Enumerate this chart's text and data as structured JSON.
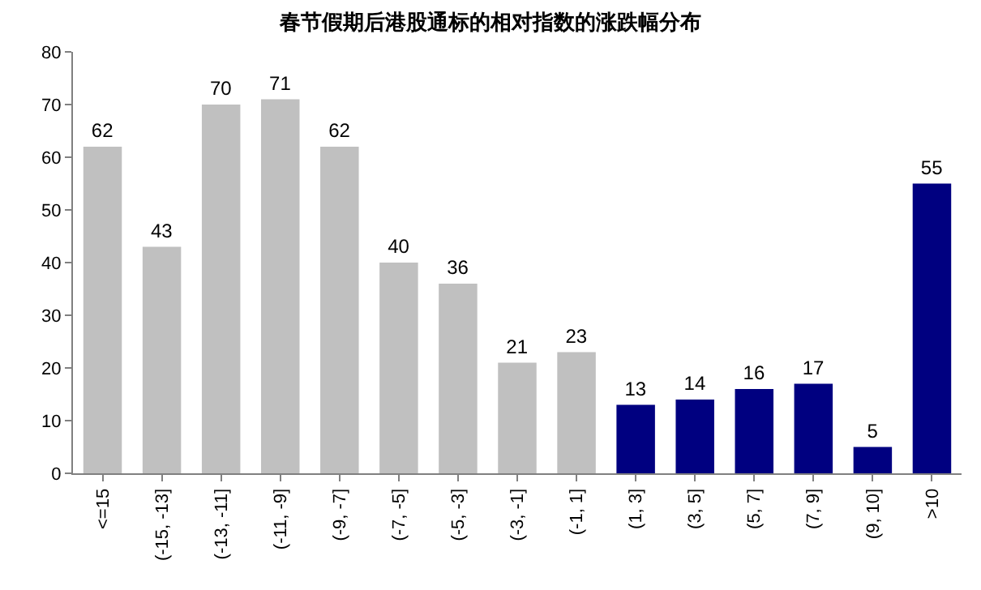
{
  "chart_data": {
    "type": "bar",
    "title": "春节假期后港股通标的相对指数的涨跌幅分布",
    "categories": [
      "<=15",
      "(-15, -13]",
      "(-13, -11]",
      "(-11, -9]",
      "(-9, -7]",
      "(-7, -5]",
      "(-5, -3]",
      "(-3, -1]",
      "(-1, 1]",
      "(1, 3]",
      "(3, 5]",
      "(5, 7]",
      "(7, 9]",
      "(9, 10]",
      ">10"
    ],
    "values": [
      62,
      43,
      70,
      71,
      62,
      40,
      36,
      21,
      23,
      13,
      14,
      16,
      17,
      5,
      55
    ],
    "colors": [
      "#c0c0c0",
      "#c0c0c0",
      "#c0c0c0",
      "#c0c0c0",
      "#c0c0c0",
      "#c0c0c0",
      "#c0c0c0",
      "#c0c0c0",
      "#c0c0c0",
      "#000080",
      "#000080",
      "#000080",
      "#000080",
      "#000080",
      "#000080"
    ],
    "ylim": [
      0,
      80
    ],
    "yticks": [
      0,
      10,
      20,
      30,
      40,
      50,
      60,
      70,
      80
    ],
    "data_labels": true
  }
}
